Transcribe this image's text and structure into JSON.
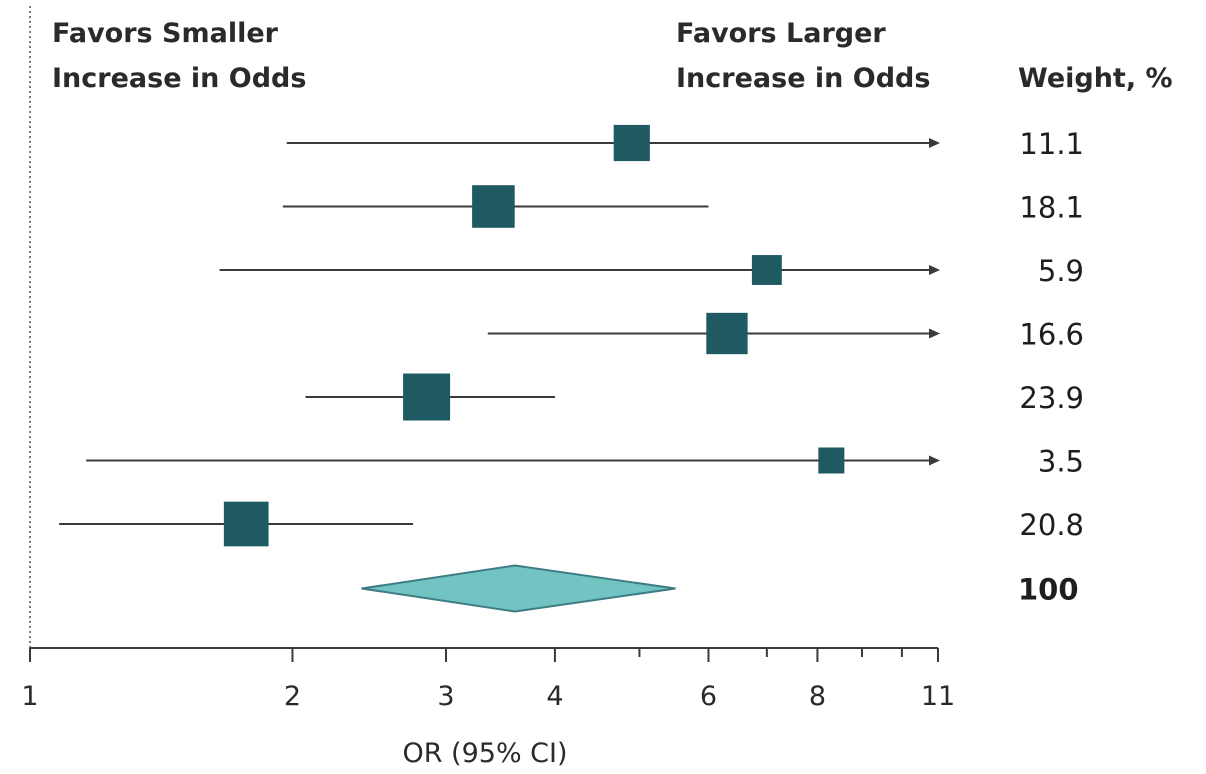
{
  "chart_data": {
    "type": "forest",
    "header_left_line1": "Favors Smaller",
    "header_left_line2": "Increase in Odds",
    "header_right_line1": "Favors Larger",
    "header_right_line2": "Increase in Odds",
    "weight_header": "Weight, %",
    "xlabel": "OR (95% CI)",
    "x_scale": "log",
    "xlim": [
      1,
      11
    ],
    "reference_line": 1,
    "ticks": [
      1,
      2,
      3,
      4,
      6,
      8,
      11
    ],
    "tick_labels": [
      "1",
      "2",
      "3",
      "4",
      "6",
      "8",
      "11"
    ],
    "minor_ticks": [
      5,
      7,
      9,
      10
    ],
    "studies": [
      {
        "or": 4.9,
        "ci_low": 1.97,
        "ci_high": 11,
        "ci_high_truncated": true,
        "weight": "11.1"
      },
      {
        "or": 3.4,
        "ci_low": 1.95,
        "ci_high": 6.0,
        "ci_high_truncated": false,
        "weight": "18.1"
      },
      {
        "or": 7.0,
        "ci_low": 1.65,
        "ci_high": 11,
        "ci_high_truncated": true,
        "weight": "5.9"
      },
      {
        "or": 6.3,
        "ci_low": 3.35,
        "ci_high": 11,
        "ci_high_truncated": true,
        "weight": "16.6"
      },
      {
        "or": 2.85,
        "ci_low": 2.07,
        "ci_high": 4.0,
        "ci_high_truncated": false,
        "weight": "23.9"
      },
      {
        "or": 8.3,
        "ci_low": 1.16,
        "ci_high": 11,
        "ci_high_truncated": true,
        "weight": "3.5"
      },
      {
        "or": 1.77,
        "ci_low": 1.08,
        "ci_high": 2.75,
        "ci_high_truncated": false,
        "weight": "20.8"
      }
    ],
    "pooled": {
      "or": 3.6,
      "ci_low": 2.4,
      "ci_high": 5.5,
      "weight": "100"
    },
    "colors": {
      "marker": "#1f5a63",
      "pooled_fill": "#72c4c3",
      "pooled_stroke": "#3e7d86",
      "ci_line": "#3a3a3a",
      "axis": "#3a3a3a",
      "reference_line": "#7a7a7a"
    }
  }
}
